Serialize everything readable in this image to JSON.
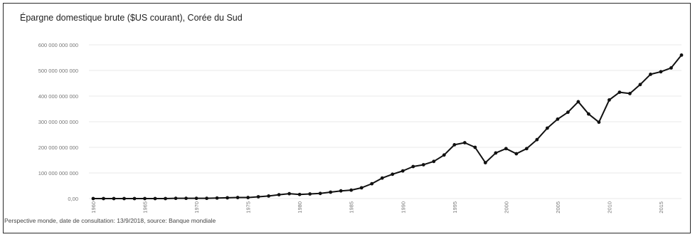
{
  "chart_data": {
    "type": "line",
    "title": "Épargne domestique brute ($US courant), Corée du Sud",
    "xlabel": "",
    "ylabel": "",
    "ylim": [
      0,
      600000000000
    ],
    "xlim": [
      1960,
      2017
    ],
    "y_ticks": [
      {
        "value": 0,
        "label": "0,00"
      },
      {
        "value": 100000000000,
        "label": "100 000 000 000"
      },
      {
        "value": 200000000000,
        "label": "200 000 000 000"
      },
      {
        "value": 300000000000,
        "label": "300 000 000 000"
      },
      {
        "value": 400000000000,
        "label": "400 000 000 000"
      },
      {
        "value": 500000000000,
        "label": "500 000 000 000"
      },
      {
        "value": 600000000000,
        "label": "600 000 000 000"
      }
    ],
    "x_ticks": [
      "1960",
      "1965",
      "1970",
      "1975",
      "1980",
      "1985",
      "1990",
      "1995",
      "2000",
      "2005",
      "2010",
      "2015"
    ],
    "grid": true,
    "series": [
      {
        "color": "#111111",
        "x": [
          1960,
          1961,
          1962,
          1963,
          1964,
          1965,
          1966,
          1967,
          1968,
          1969,
          1970,
          1971,
          1972,
          1973,
          1974,
          1975,
          1976,
          1977,
          1978,
          1979,
          1980,
          1981,
          1982,
          1983,
          1984,
          1985,
          1986,
          1987,
          1988,
          1989,
          1990,
          1991,
          1992,
          1993,
          1994,
          1995,
          1996,
          1997,
          1998,
          1999,
          2000,
          2001,
          2002,
          2003,
          2004,
          2005,
          2006,
          2007,
          2008,
          2009,
          2010,
          2011,
          2012,
          2013,
          2014,
          2015,
          2016,
          2017
        ],
        "values": [
          0,
          0,
          0,
          0,
          0,
          0,
          0,
          0,
          1000000000,
          1000000000,
          1000000000,
          1000000000,
          2000000000,
          3000000000,
          4000000000,
          4000000000,
          7000000000,
          10000000000,
          15000000000,
          19000000000,
          16000000000,
          18000000000,
          20000000000,
          25000000000,
          30000000000,
          33000000000,
          42000000000,
          58000000000,
          80000000000,
          95000000000,
          108000000000,
          125000000000,
          132000000000,
          145000000000,
          170000000000,
          210000000000,
          218000000000,
          200000000000,
          140000000000,
          178000000000,
          195000000000,
          175000000000,
          195000000000,
          230000000000,
          275000000000,
          310000000000,
          337000000000,
          378000000000,
          330000000000,
          298000000000,
          385000000000,
          415000000000,
          410000000000,
          445000000000,
          485000000000,
          495000000000,
          510000000000,
          560000000000
        ]
      }
    ]
  },
  "source": "Perspective monde, date de consultation: 13/9/2018, source: Banque mondiale"
}
